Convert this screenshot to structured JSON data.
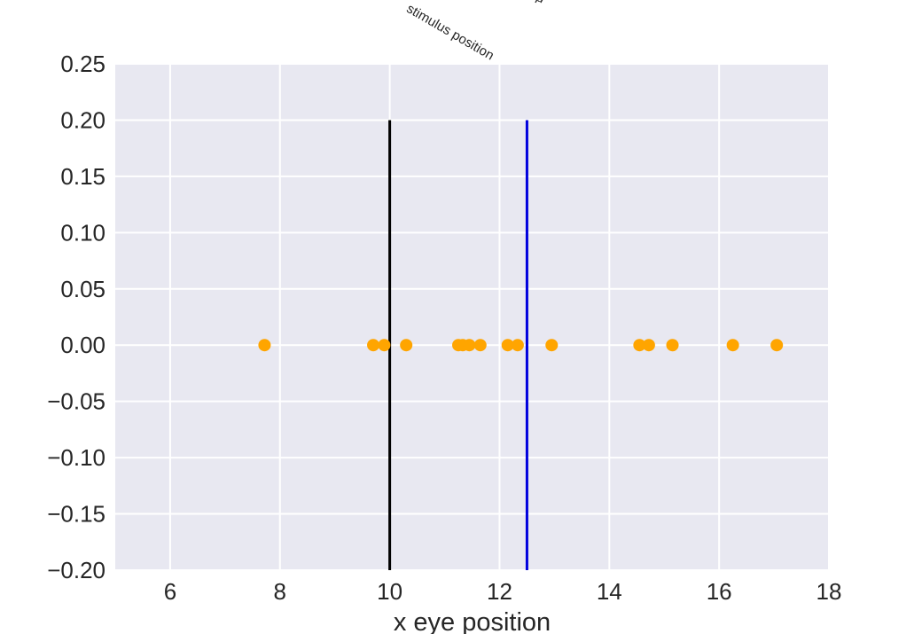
{
  "chart_data": {
    "type": "scatter",
    "title": "",
    "xlabel": "x eye position",
    "ylabel": "",
    "xlim": [
      5,
      18
    ],
    "ylim": [
      -0.2,
      0.25
    ],
    "xticks": [
      6,
      8,
      10,
      12,
      14,
      16,
      18
    ],
    "yticks": [
      -0.2,
      -0.15,
      -0.1,
      -0.05,
      0.0,
      0.05,
      0.1,
      0.15,
      0.2,
      0.25
    ],
    "xtick_labels": [
      "6",
      "8",
      "10",
      "12",
      "14",
      "16",
      "18"
    ],
    "ytick_labels": [
      "−0.20",
      "−0.15",
      "−0.10",
      "−0.05",
      "0.00",
      "0.05",
      "0.10",
      "0.15",
      "0.20",
      "0.25"
    ],
    "grid": true,
    "background": "#e8e8f1",
    "points": {
      "color": "#ffa500",
      "x": [
        7.72,
        9.7,
        9.9,
        10.3,
        11.25,
        11.33,
        11.45,
        11.65,
        12.15,
        12.33,
        12.95,
        14.55,
        14.72,
        15.15,
        16.25,
        17.05
      ],
      "y": [
        0,
        0,
        0,
        0,
        0,
        0,
        0,
        0,
        0,
        0,
        0,
        0,
        0,
        0,
        0,
        0
      ]
    },
    "vlines": [
      {
        "x": 10.0,
        "ymin": -0.2,
        "ymax": 0.2,
        "color": "#000000",
        "label": "stimulus position"
      },
      {
        "x": 12.5,
        "ymin": -0.2,
        "ymax": 0.2,
        "color": "#0000dd",
        "label": "μ"
      }
    ]
  }
}
